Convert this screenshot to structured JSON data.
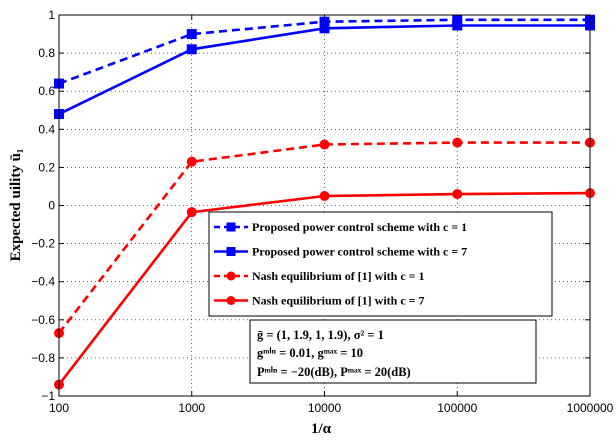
{
  "chart_data": {
    "type": "line",
    "xscale": "log",
    "x": [
      100,
      1000,
      10000,
      100000,
      1000000
    ],
    "xticks": [
      "100",
      "1000",
      "10000",
      "100000",
      "1000000"
    ],
    "xlim": [
      100,
      1000000
    ],
    "ylim": [
      -1,
      1
    ],
    "yticks": [
      "−1",
      "−0.8",
      "−0.6",
      "−0.4",
      "−0.2",
      "0",
      "0.2",
      "0.4",
      "0.6",
      "0.8",
      "1"
    ],
    "xlabel": "1/α",
    "ylabel": "Expected uility ū₁",
    "grid": true,
    "legend_position": "right-middle",
    "series": [
      {
        "name": "Proposed power control scheme with c = 1",
        "color": "#0000ff",
        "dash": true,
        "marker": "square",
        "values": [
          0.64,
          0.9,
          0.965,
          0.975,
          0.975
        ]
      },
      {
        "name": "Proposed power control scheme with c = 7",
        "color": "#0000ff",
        "dash": false,
        "marker": "square",
        "values": [
          0.48,
          0.82,
          0.93,
          0.945,
          0.945
        ]
      },
      {
        "name": "Nash equilibrium of [1] with c = 1",
        "color": "#ff0000",
        "dash": true,
        "marker": "circle",
        "values": [
          -0.67,
          0.23,
          0.32,
          0.33,
          0.33
        ]
      },
      {
        "name": "Nash equilibrium of [1] with c = 7",
        "color": "#ff0000",
        "dash": false,
        "marker": "circle",
        "values": [
          -0.94,
          -0.035,
          0.05,
          0.06,
          0.065
        ]
      }
    ],
    "annotations": [
      "ḡ = (1, 1.9, 1, 1.9), σ² = 1",
      "gᵐⁱⁿ = 0.01, gᵐᵃˣ = 10",
      "Pᵐⁱⁿ = −20(dB), Pᵐᵃˣ = 20(dB)"
    ]
  }
}
